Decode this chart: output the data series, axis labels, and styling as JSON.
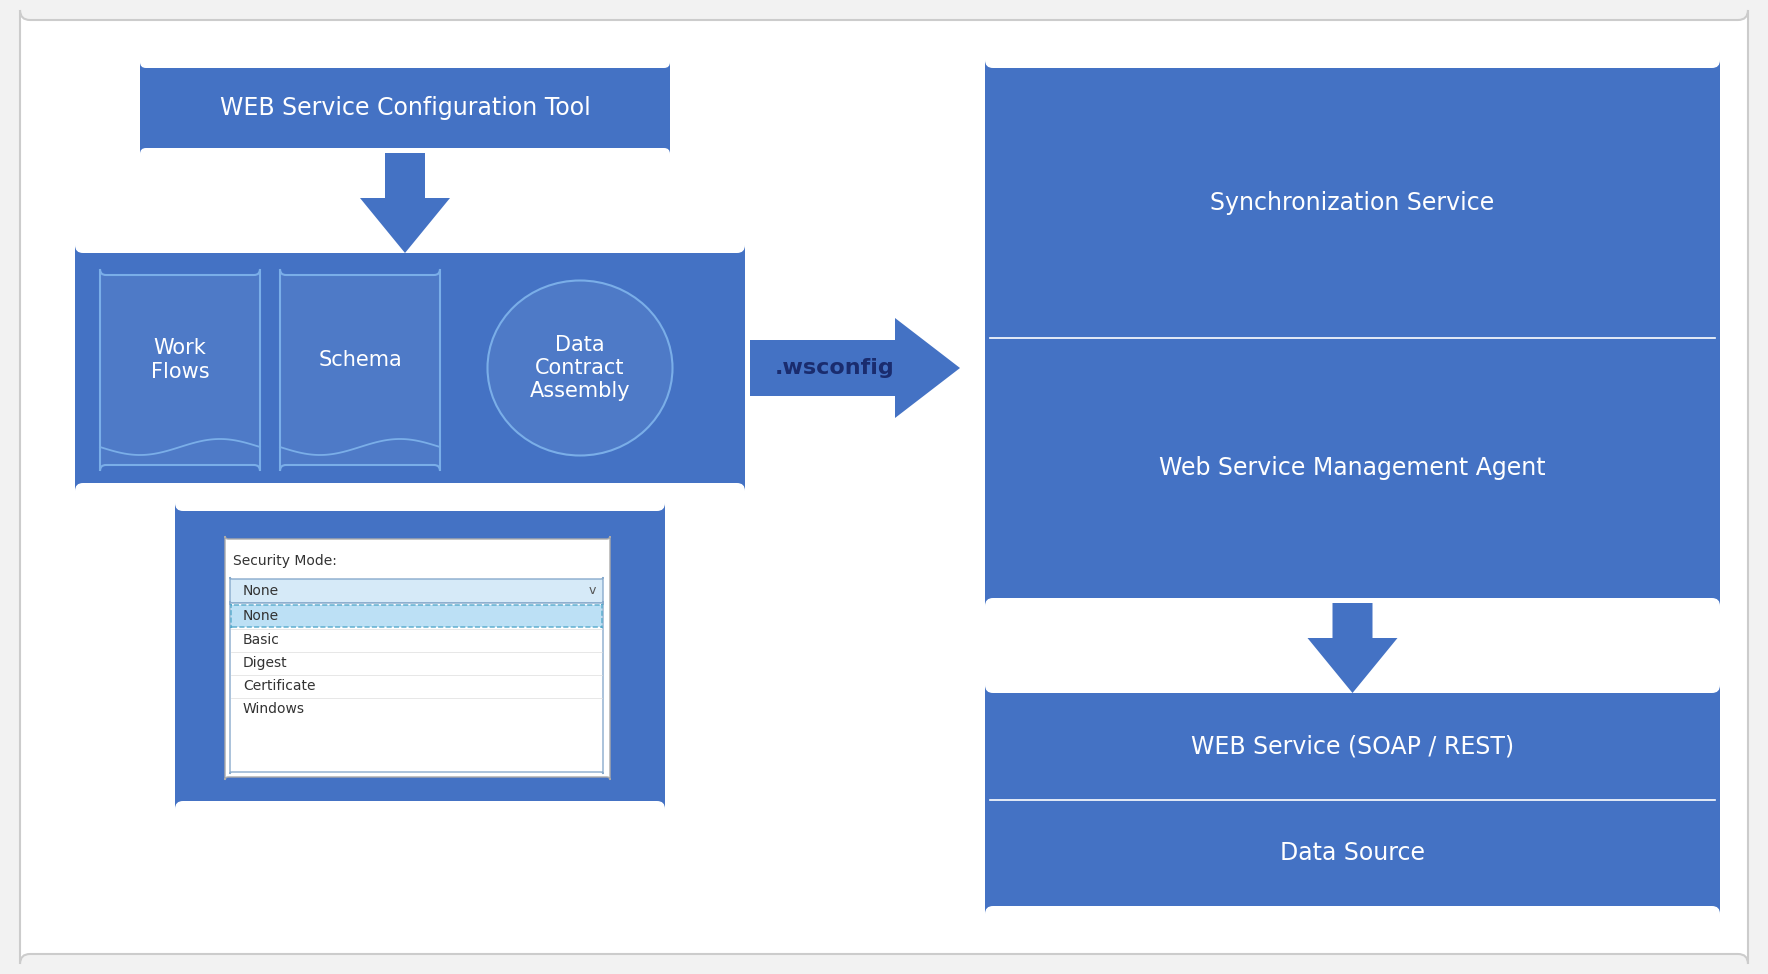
{
  "bg_color": "#f2f2f2",
  "blue": "#4472c4",
  "blue_inner": "#4e7ac7",
  "blue_lighter": "#5b8bd0",
  "white": "#ffffff",
  "title_top": "WEB Service Configuration Tool",
  "title_sync": "Synchronization Service",
  "title_wsma": "Web Service Management Agent",
  "title_web": "WEB Service (SOAP / REST)",
  "title_ds": "Data Source",
  "label_wf": "Work\nFlows",
  "label_schema": "Schema",
  "label_dca": "Data\nContract\nAssembly",
  "label_wsconfig": ".wsconfig",
  "security_label": "Security Mode:",
  "font_size_title": 17,
  "font_size_label": 15,
  "font_size_wsconfig": 16,
  "font_size_small": 10
}
